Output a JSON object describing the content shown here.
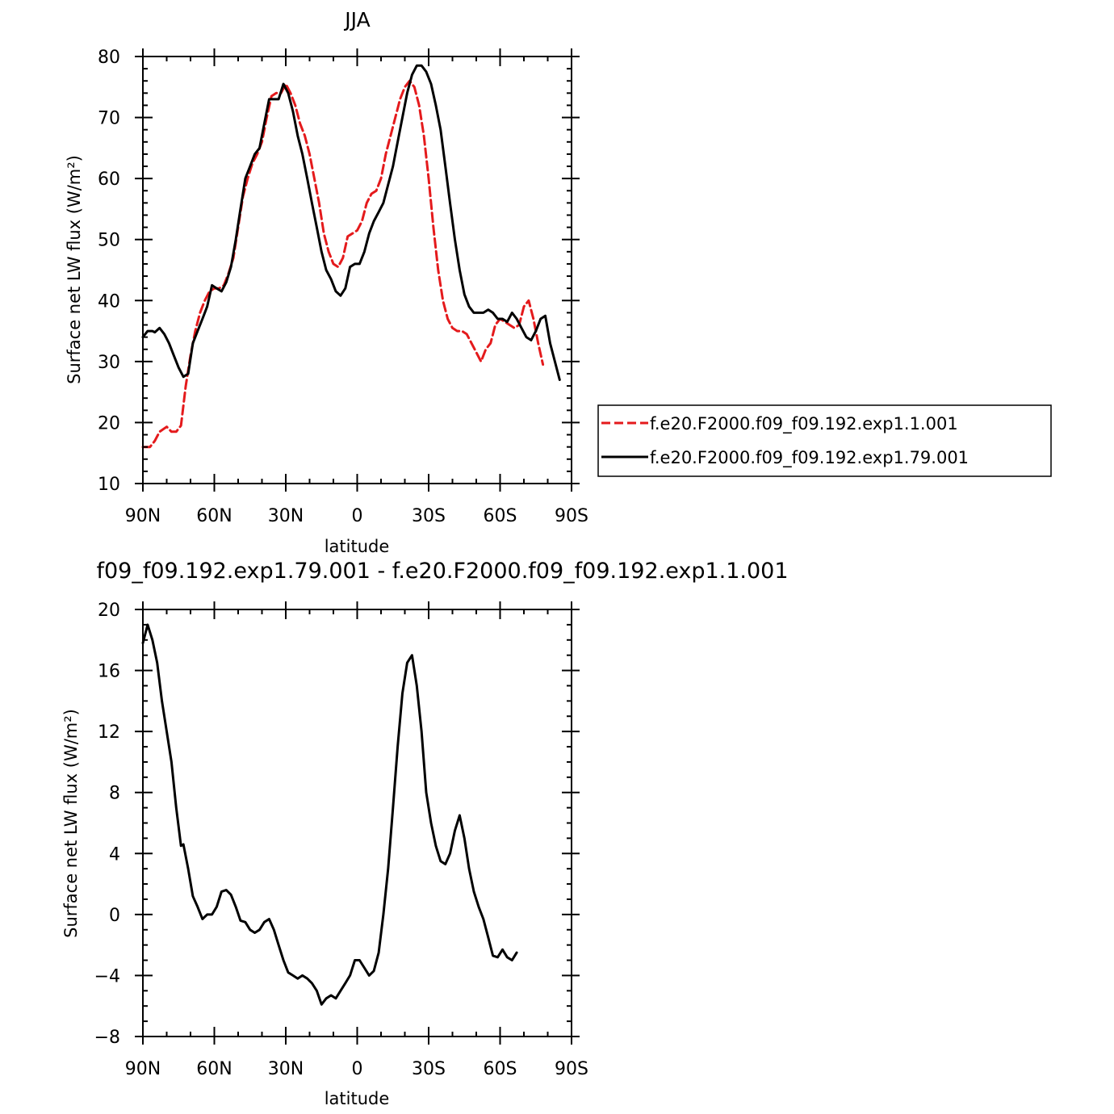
{
  "chart_data": [
    {
      "type": "line",
      "title": "JJA",
      "xlabel": "latitude",
      "ylabel": "Surface net LW flux (W/m²)",
      "xlim": [
        90,
        -90
      ],
      "ylim": [
        10,
        80
      ],
      "xticks": [
        90,
        60,
        30,
        0,
        -30,
        -60,
        -90
      ],
      "xtick_labels": [
        "90N",
        "60N",
        "30N",
        "0",
        "30S",
        "60S",
        "90S"
      ],
      "yticks": [
        10,
        20,
        30,
        40,
        50,
        60,
        70,
        80
      ],
      "ytick_labels": [
        "10",
        "20",
        "30",
        "40",
        "50",
        "60",
        "70",
        "80"
      ],
      "grid": false,
      "legend": "outside-right",
      "series": [
        {
          "name": "f.e20.F2000.f09_f09.192.exp1.1.001",
          "color": "#e41a1c",
          "dash": "dashed",
          "points": [
            [
              90,
              16
            ],
            [
              87,
              16
            ],
            [
              85,
              17
            ],
            [
              83,
              18.5
            ],
            [
              80,
              19.3
            ],
            [
              78,
              18.5
            ],
            [
              76,
              18.5
            ],
            [
              74,
              19.5
            ],
            [
              72,
              26
            ],
            [
              70,
              31
            ],
            [
              68,
              35
            ],
            [
              66,
              38
            ],
            [
              64,
              40
            ],
            [
              62,
              41.5
            ],
            [
              60,
              42
            ],
            [
              58,
              42
            ],
            [
              56,
              42.5
            ],
            [
              54,
              44.5
            ],
            [
              52,
              47
            ],
            [
              50,
              52
            ],
            [
              48,
              57
            ],
            [
              46,
              60
            ],
            [
              44,
              62.5
            ],
            [
              42,
              64
            ],
            [
              40,
              66
            ],
            [
              38,
              70
            ],
            [
              36,
              73.5
            ],
            [
              34,
              74
            ],
            [
              32,
              74
            ],
            [
              30,
              75.5
            ],
            [
              28,
              74
            ],
            [
              26,
              72
            ],
            [
              24,
              69
            ],
            [
              22,
              67
            ],
            [
              20,
              64
            ],
            [
              18,
              60
            ],
            [
              16,
              56
            ],
            [
              14,
              51
            ],
            [
              12,
              48
            ],
            [
              10,
              46
            ],
            [
              8,
              45.5
            ],
            [
              6,
              47
            ],
            [
              4,
              50.5
            ],
            [
              2,
              51
            ],
            [
              0,
              51.5
            ],
            [
              -2,
              53
            ],
            [
              -4,
              56
            ],
            [
              -6,
              57.5
            ],
            [
              -8,
              58
            ],
            [
              -10,
              60
            ],
            [
              -12,
              64
            ],
            [
              -14,
              67
            ],
            [
              -16,
              70
            ],
            [
              -18,
              73
            ],
            [
              -20,
              75
            ],
            [
              -22,
              76
            ],
            [
              -24,
              75
            ],
            [
              -26,
              72
            ],
            [
              -28,
              67
            ],
            [
              -30,
              60
            ],
            [
              -32,
              52
            ],
            [
              -34,
              45
            ],
            [
              -36,
              40
            ],
            [
              -38,
              37
            ],
            [
              -40,
              35.5
            ],
            [
              -42,
              35
            ],
            [
              -44,
              35
            ],
            [
              -46,
              34.5
            ],
            [
              -48,
              33
            ],
            [
              -50,
              31.5
            ],
            [
              -52,
              30
            ],
            [
              -54,
              32
            ],
            [
              -56,
              33
            ],
            [
              -58,
              36
            ],
            [
              -60,
              37
            ],
            [
              -62,
              36.5
            ],
            [
              -64,
              36
            ],
            [
              -66,
              35.5
            ],
            [
              -68,
              36
            ],
            [
              -70,
              39
            ],
            [
              -72,
              40
            ],
            [
              -74,
              37
            ],
            [
              -76,
              33
            ],
            [
              -78,
              29.5
            ]
          ]
        },
        {
          "name": "f.e20.F2000.f09_f09.192.exp1.79.001",
          "color": "#000000",
          "dash": "solid",
          "points": [
            [
              90,
              34
            ],
            [
              88,
              35
            ],
            [
              86,
              35
            ],
            [
              85,
              34.8
            ],
            [
              83,
              35.5
            ],
            [
              81,
              34.5
            ],
            [
              79,
              33
            ],
            [
              77,
              31
            ],
            [
              75,
              29
            ],
            [
              73,
              27.5
            ],
            [
              71,
              28
            ],
            [
              69,
              33
            ],
            [
              67,
              35
            ],
            [
              65,
              37
            ],
            [
              63,
              39
            ],
            [
              61,
              42.5
            ],
            [
              59,
              42
            ],
            [
              57,
              41.5
            ],
            [
              55,
              43
            ],
            [
              53,
              45.5
            ],
            [
              51,
              50
            ],
            [
              49,
              55
            ],
            [
              47,
              60
            ],
            [
              45,
              62
            ],
            [
              43,
              64
            ],
            [
              41,
              65
            ],
            [
              39,
              69
            ],
            [
              37,
              73
            ],
            [
              35,
              73
            ],
            [
              33,
              73
            ],
            [
              31,
              75.5
            ],
            [
              29,
              74
            ],
            [
              27,
              71
            ],
            [
              25,
              67
            ],
            [
              23,
              64
            ],
            [
              21,
              60
            ],
            [
              19,
              56
            ],
            [
              17,
              52
            ],
            [
              15,
              48
            ],
            [
              13,
              45
            ],
            [
              11,
              43.5
            ],
            [
              9,
              41.5
            ],
            [
              7,
              40.8
            ],
            [
              5,
              42
            ],
            [
              3,
              45.5
            ],
            [
              1,
              46
            ],
            [
              -1,
              46
            ],
            [
              -3,
              48
            ],
            [
              -5,
              51
            ],
            [
              -7,
              53
            ],
            [
              -9,
              54.5
            ],
            [
              -11,
              56
            ],
            [
              -13,
              59
            ],
            [
              -15,
              62
            ],
            [
              -17,
              66
            ],
            [
              -19,
              70
            ],
            [
              -21,
              74
            ],
            [
              -23,
              77
            ],
            [
              -25,
              78.5
            ],
            [
              -27,
              78.5
            ],
            [
              -29,
              77.5
            ],
            [
              -31,
              75.5
            ],
            [
              -33,
              72
            ],
            [
              -35,
              68
            ],
            [
              -37,
              62
            ],
            [
              -39,
              56
            ],
            [
              -41,
              50
            ],
            [
              -43,
              45
            ],
            [
              -45,
              41
            ],
            [
              -47,
              39
            ],
            [
              -49,
              38
            ],
            [
              -51,
              38
            ],
            [
              -53,
              38
            ],
            [
              -55,
              38.5
            ],
            [
              -57,
              38
            ],
            [
              -59,
              37
            ],
            [
              -61,
              37
            ],
            [
              -63,
              36.5
            ],
            [
              -65,
              38
            ],
            [
              -67,
              37
            ],
            [
              -69,
              35.5
            ],
            [
              -71,
              34
            ],
            [
              -73,
              33.5
            ],
            [
              -75,
              35
            ],
            [
              -77,
              37
            ],
            [
              -79,
              37.5
            ],
            [
              -81,
              33
            ],
            [
              -83,
              30
            ],
            [
              -85,
              27
            ]
          ]
        }
      ]
    },
    {
      "type": "line",
      "title": "f09_f09.192.exp1.79.001 - f.e20.F2000.f09_f09.192.exp1.1.001",
      "xlabel": "latitude",
      "ylabel": "Surface net LW flux (W/m²)",
      "xlim": [
        90,
        -90
      ],
      "ylim": [
        -8,
        20
      ],
      "xticks": [
        90,
        60,
        30,
        0,
        -30,
        -60,
        -90
      ],
      "xtick_labels": [
        "90N",
        "60N",
        "30N",
        "0",
        "30S",
        "60S",
        "90S"
      ],
      "yticks": [
        -8,
        -4,
        0,
        4,
        8,
        12,
        16,
        20
      ],
      "ytick_labels": [
        "−8",
        "−4",
        "0",
        "4",
        "8",
        "12",
        "16",
        "20"
      ],
      "grid": false,
      "series": [
        {
          "color": "#000000",
          "dash": "solid",
          "points": [
            [
              90,
              17.8
            ],
            [
              88,
              19
            ],
            [
              86,
              18
            ],
            [
              84,
              16.5
            ],
            [
              82,
              14
            ],
            [
              80,
              12
            ],
            [
              78,
              10
            ],
            [
              76,
              7
            ],
            [
              74,
              4.5
            ],
            [
              73,
              4.6
            ],
            [
              71,
              3
            ],
            [
              69,
              1.2
            ],
            [
              67,
              0.5
            ],
            [
              65,
              -0.3
            ],
            [
              63,
              0
            ],
            [
              61,
              0
            ],
            [
              59,
              0.5
            ],
            [
              57,
              1.5
            ],
            [
              55,
              1.6
            ],
            [
              53,
              1.3
            ],
            [
              51,
              0.5
            ],
            [
              49,
              -0.4
            ],
            [
              47,
              -0.5
            ],
            [
              45,
              -1
            ],
            [
              43,
              -1.2
            ],
            [
              41,
              -1
            ],
            [
              39,
              -0.5
            ],
            [
              37,
              -0.3
            ],
            [
              35,
              -1
            ],
            [
              33,
              -2
            ],
            [
              31,
              -3
            ],
            [
              29,
              -3.8
            ],
            [
              27,
              -4
            ],
            [
              25,
              -4.2
            ],
            [
              23,
              -4
            ],
            [
              21,
              -4.2
            ],
            [
              19,
              -4.5
            ],
            [
              17,
              -5
            ],
            [
              15,
              -5.9
            ],
            [
              13,
              -5.5
            ],
            [
              11,
              -5.3
            ],
            [
              9,
              -5.5
            ],
            [
              7,
              -5
            ],
            [
              5,
              -4.5
            ],
            [
              3,
              -4
            ],
            [
              1,
              -3
            ],
            [
              -1,
              -3
            ],
            [
              -3,
              -3.5
            ],
            [
              -5,
              -4
            ],
            [
              -7,
              -3.7
            ],
            [
              -9,
              -2.5
            ],
            [
              -11,
              0
            ],
            [
              -13,
              3
            ],
            [
              -15,
              7
            ],
            [
              -17,
              11
            ],
            [
              -19,
              14.5
            ],
            [
              -21,
              16.5
            ],
            [
              -23,
              17
            ],
            [
              -25,
              15
            ],
            [
              -27,
              12
            ],
            [
              -29,
              8
            ],
            [
              -31,
              6
            ],
            [
              -33,
              4.5
            ],
            [
              -35,
              3.5
            ],
            [
              -37,
              3.3
            ],
            [
              -39,
              4
            ],
            [
              -41,
              5.5
            ],
            [
              -43,
              6.5
            ],
            [
              -45,
              5
            ],
            [
              -47,
              3
            ],
            [
              -49,
              1.5
            ],
            [
              -51,
              0.5
            ],
            [
              -53,
              -0.3
            ],
            [
              -55,
              -1.5
            ],
            [
              -57,
              -2.7
            ],
            [
              -59,
              -2.8
            ],
            [
              -61,
              -2.3
            ],
            [
              -63,
              -2.8
            ],
            [
              -65,
              -3
            ],
            [
              -67,
              -2.5
            ]
          ]
        }
      ]
    }
  ]
}
